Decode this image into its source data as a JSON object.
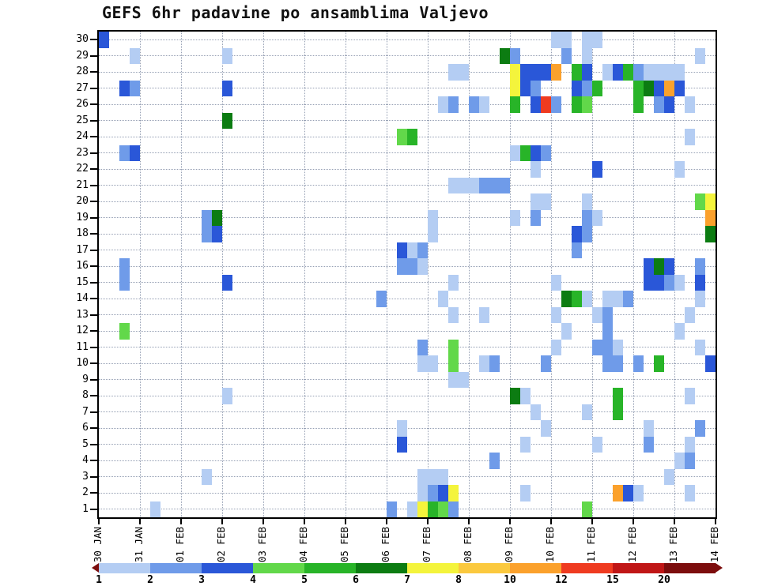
{
  "title": "GEFS 6hr padavine po ansamblima Valjevo",
  "chart_data": {
    "type": "heatmap",
    "title": "GEFS 6hr padavine po ansamblima Valjevo",
    "x_axis": {
      "labels": [
        "30 JAN",
        "31 JAN",
        "01 FEB",
        "02 FEB",
        "03 FEB",
        "04 FEB",
        "05 FEB",
        "06 FEB",
        "07 FEB",
        "08 FEB",
        "09 FEB",
        "10 FEB",
        "11 FEB",
        "12 FEB",
        "13 FEB",
        "14 FEB"
      ],
      "steps_per_day": 4,
      "step_hours": 6
    },
    "y_axis": {
      "description": "ensemble-member",
      "tick_labels": [
        "30",
        "29",
        "28",
        "27",
        "26",
        "25",
        "24",
        "23",
        "22",
        "21",
        "20",
        "19",
        "18",
        "17",
        "16",
        "15",
        "14",
        "13",
        "12",
        "11",
        "10",
        "9",
        "8",
        "7",
        "6",
        "5",
        "4",
        "3",
        "2",
        "1"
      ]
    },
    "colorbar": {
      "tick_labels": [
        "1",
        "2",
        "3",
        "4",
        "5",
        "6",
        "7",
        "8",
        "10",
        "12",
        "15",
        "20"
      ],
      "segment_colors": [
        "#b4cdf3",
        "#6f9be9",
        "#2a57d8",
        "#62d84a",
        "#28b428",
        "#0c7c12",
        "#f4f43c",
        "#fbc93e",
        "#fba12c",
        "#ef3b20",
        "#c01616",
        "#7c0d0d"
      ],
      "under_arrow_color": "#7c0d0d",
      "over_arrow_color": "#7c0d0d"
    },
    "style": {
      "grid_color": "#96a0b4",
      "frame_color": "#000000",
      "background": "#ffffff"
    },
    "cells_schema": "[ensemble_member, six_hour_step_index_from_30JAN, color_level_1_to_12]",
    "cells": [
      [
        30,
        0,
        3
      ],
      [
        30,
        44,
        1
      ],
      [
        30,
        45,
        1
      ],
      [
        30,
        47,
        1
      ],
      [
        30,
        48,
        1
      ],
      [
        29,
        3,
        1
      ],
      [
        29,
        12,
        1
      ],
      [
        29,
        39,
        6
      ],
      [
        29,
        40,
        2
      ],
      [
        29,
        45,
        2
      ],
      [
        29,
        47,
        1
      ],
      [
        29,
        58,
        1
      ],
      [
        28,
        34,
        1
      ],
      [
        28,
        35,
        1
      ],
      [
        28,
        40,
        7
      ],
      [
        28,
        41,
        3
      ],
      [
        28,
        42,
        3
      ],
      [
        28,
        43,
        3
      ],
      [
        28,
        44,
        9
      ],
      [
        28,
        46,
        5
      ],
      [
        28,
        47,
        3
      ],
      [
        28,
        49,
        1
      ],
      [
        28,
        50,
        3
      ],
      [
        28,
        51,
        5
      ],
      [
        28,
        52,
        2
      ],
      [
        28,
        53,
        1
      ],
      [
        28,
        54,
        1
      ],
      [
        28,
        55,
        1
      ],
      [
        28,
        56,
        1
      ],
      [
        27,
        2,
        3
      ],
      [
        27,
        3,
        2
      ],
      [
        27,
        12,
        3
      ],
      [
        27,
        40,
        7
      ],
      [
        27,
        41,
        3
      ],
      [
        27,
        42,
        2
      ],
      [
        27,
        46,
        3
      ],
      [
        27,
        47,
        2
      ],
      [
        27,
        48,
        5
      ],
      [
        27,
        52,
        5
      ],
      [
        27,
        53,
        6
      ],
      [
        27,
        54,
        3
      ],
      [
        27,
        55,
        9
      ],
      [
        27,
        56,
        3
      ],
      [
        26,
        33,
        1
      ],
      [
        26,
        34,
        2
      ],
      [
        26,
        36,
        2
      ],
      [
        26,
        37,
        1
      ],
      [
        26,
        40,
        5
      ],
      [
        26,
        42,
        3
      ],
      [
        26,
        43,
        10
      ],
      [
        26,
        44,
        2
      ],
      [
        26,
        46,
        5
      ],
      [
        26,
        47,
        4
      ],
      [
        26,
        52,
        5
      ],
      [
        26,
        54,
        2
      ],
      [
        26,
        55,
        3
      ],
      [
        26,
        57,
        1
      ],
      [
        25,
        12,
        6
      ],
      [
        24,
        29,
        4
      ],
      [
        24,
        30,
        5
      ],
      [
        24,
        57,
        1
      ],
      [
        23,
        2,
        2
      ],
      [
        23,
        3,
        3
      ],
      [
        23,
        40,
        1
      ],
      [
        23,
        41,
        5
      ],
      [
        23,
        42,
        3
      ],
      [
        23,
        43,
        2
      ],
      [
        22,
        42,
        1
      ],
      [
        22,
        48,
        3
      ],
      [
        22,
        56,
        1
      ],
      [
        21,
        34,
        1
      ],
      [
        21,
        35,
        1
      ],
      [
        21,
        36,
        1
      ],
      [
        21,
        37,
        2
      ],
      [
        21,
        38,
        2
      ],
      [
        21,
        39,
        2
      ],
      [
        20,
        42,
        1
      ],
      [
        20,
        43,
        1
      ],
      [
        20,
        47,
        1
      ],
      [
        20,
        58,
        4
      ],
      [
        20,
        59,
        7
      ],
      [
        19,
        10,
        2
      ],
      [
        19,
        11,
        6
      ],
      [
        19,
        32,
        1
      ],
      [
        19,
        40,
        1
      ],
      [
        19,
        42,
        2
      ],
      [
        19,
        47,
        2
      ],
      [
        19,
        48,
        1
      ],
      [
        19,
        59,
        9
      ],
      [
        18,
        10,
        2
      ],
      [
        18,
        11,
        3
      ],
      [
        18,
        32,
        1
      ],
      [
        18,
        46,
        3
      ],
      [
        18,
        47,
        2
      ],
      [
        18,
        59,
        6
      ],
      [
        17,
        29,
        3
      ],
      [
        17,
        30,
        1
      ],
      [
        17,
        31,
        2
      ],
      [
        17,
        46,
        2
      ],
      [
        16,
        2,
        2
      ],
      [
        16,
        29,
        2
      ],
      [
        16,
        30,
        2
      ],
      [
        16,
        31,
        1
      ],
      [
        16,
        53,
        3
      ],
      [
        16,
        54,
        6
      ],
      [
        16,
        55,
        3
      ],
      [
        16,
        58,
        2
      ],
      [
        15,
        2,
        2
      ],
      [
        15,
        12,
        3
      ],
      [
        15,
        34,
        1
      ],
      [
        15,
        44,
        1
      ],
      [
        15,
        53,
        3
      ],
      [
        15,
        54,
        3
      ],
      [
        15,
        55,
        2
      ],
      [
        15,
        56,
        1
      ],
      [
        15,
        58,
        3
      ],
      [
        14,
        27,
        2
      ],
      [
        14,
        33,
        1
      ],
      [
        14,
        45,
        6
      ],
      [
        14,
        46,
        5
      ],
      [
        14,
        47,
        1
      ],
      [
        14,
        49,
        1
      ],
      [
        14,
        50,
        1
      ],
      [
        14,
        51,
        2
      ],
      [
        14,
        58,
        1
      ],
      [
        13,
        34,
        1
      ],
      [
        13,
        37,
        1
      ],
      [
        13,
        44,
        1
      ],
      [
        13,
        48,
        1
      ],
      [
        13,
        49,
        2
      ],
      [
        13,
        57,
        1
      ],
      [
        12,
        2,
        4
      ],
      [
        12,
        45,
        1
      ],
      [
        12,
        49,
        2
      ],
      [
        12,
        56,
        1
      ],
      [
        11,
        31,
        2
      ],
      [
        11,
        34,
        4
      ],
      [
        11,
        44,
        1
      ],
      [
        11,
        48,
        2
      ],
      [
        11,
        49,
        2
      ],
      [
        11,
        50,
        1
      ],
      [
        11,
        58,
        1
      ],
      [
        10,
        31,
        1
      ],
      [
        10,
        32,
        1
      ],
      [
        10,
        34,
        4
      ],
      [
        10,
        37,
        1
      ],
      [
        10,
        38,
        2
      ],
      [
        10,
        43,
        2
      ],
      [
        10,
        49,
        2
      ],
      [
        10,
        50,
        2
      ],
      [
        10,
        52,
        2
      ],
      [
        10,
        54,
        5
      ],
      [
        10,
        59,
        3
      ],
      [
        9,
        34,
        1
      ],
      [
        9,
        35,
        1
      ],
      [
        8,
        12,
        1
      ],
      [
        8,
        40,
        6
      ],
      [
        8,
        41,
        1
      ],
      [
        8,
        50,
        5
      ],
      [
        8,
        57,
        1
      ],
      [
        7,
        42,
        1
      ],
      [
        7,
        47,
        1
      ],
      [
        7,
        50,
        5
      ],
      [
        6,
        29,
        1
      ],
      [
        6,
        43,
        1
      ],
      [
        6,
        53,
        1
      ],
      [
        6,
        58,
        2
      ],
      [
        5,
        29,
        3
      ],
      [
        5,
        41,
        1
      ],
      [
        5,
        48,
        1
      ],
      [
        5,
        53,
        2
      ],
      [
        5,
        57,
        1
      ],
      [
        4,
        38,
        2
      ],
      [
        4,
        56,
        1
      ],
      [
        4,
        57,
        2
      ],
      [
        3,
        10,
        1
      ],
      [
        3,
        31,
        1
      ],
      [
        3,
        32,
        1
      ],
      [
        3,
        33,
        1
      ],
      [
        3,
        55,
        1
      ],
      [
        2,
        31,
        1
      ],
      [
        2,
        32,
        2
      ],
      [
        2,
        33,
        3
      ],
      [
        2,
        34,
        7
      ],
      [
        2,
        41,
        1
      ],
      [
        2,
        50,
        9
      ],
      [
        2,
        51,
        3
      ],
      [
        2,
        52,
        1
      ],
      [
        2,
        57,
        1
      ],
      [
        1,
        5,
        1
      ],
      [
        1,
        28,
        2
      ],
      [
        1,
        30,
        1
      ],
      [
        1,
        31,
        7
      ],
      [
        1,
        32,
        5
      ],
      [
        1,
        33,
        4
      ],
      [
        1,
        34,
        2
      ],
      [
        1,
        47,
        4
      ]
    ]
  }
}
